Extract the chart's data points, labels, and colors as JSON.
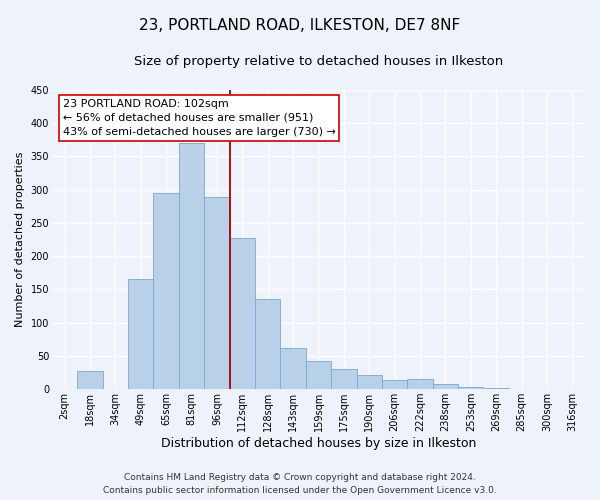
{
  "title": "23, PORTLAND ROAD, ILKESTON, DE7 8NF",
  "subtitle": "Size of property relative to detached houses in Ilkeston",
  "xlabel": "Distribution of detached houses by size in Ilkeston",
  "ylabel": "Number of detached properties",
  "bar_labels": [
    "2sqm",
    "18sqm",
    "34sqm",
    "49sqm",
    "65sqm",
    "81sqm",
    "96sqm",
    "112sqm",
    "128sqm",
    "143sqm",
    "159sqm",
    "175sqm",
    "190sqm",
    "206sqm",
    "222sqm",
    "238sqm",
    "253sqm",
    "269sqm",
    "285sqm",
    "300sqm",
    "316sqm"
  ],
  "bar_heights": [
    0,
    27,
    0,
    165,
    295,
    370,
    289,
    228,
    135,
    62,
    43,
    30,
    22,
    14,
    15,
    8,
    3,
    2,
    1,
    1,
    1
  ],
  "bar_color": "#b8d0e8",
  "bar_edge_color": "#7aaac8",
  "annotation_box_text": "23 PORTLAND ROAD: 102sqm\n← 56% of detached houses are smaller (951)\n43% of semi-detached houses are larger (730) →",
  "annotation_line_color": "#aa0000",
  "annotation_line_index": 6.5,
  "ylim": [
    0,
    450
  ],
  "yticks": [
    0,
    50,
    100,
    150,
    200,
    250,
    300,
    350,
    400,
    450
  ],
  "footer_line1": "Contains HM Land Registry data © Crown copyright and database right 2024.",
  "footer_line2": "Contains public sector information licensed under the Open Government Licence v3.0.",
  "background_color": "#eef2fb",
  "grid_color": "#ffffff",
  "title_fontsize": 11,
  "subtitle_fontsize": 9.5,
  "xlabel_fontsize": 9,
  "ylabel_fontsize": 8,
  "tick_fontsize": 7,
  "footer_fontsize": 6.5,
  "annot_fontsize": 8
}
